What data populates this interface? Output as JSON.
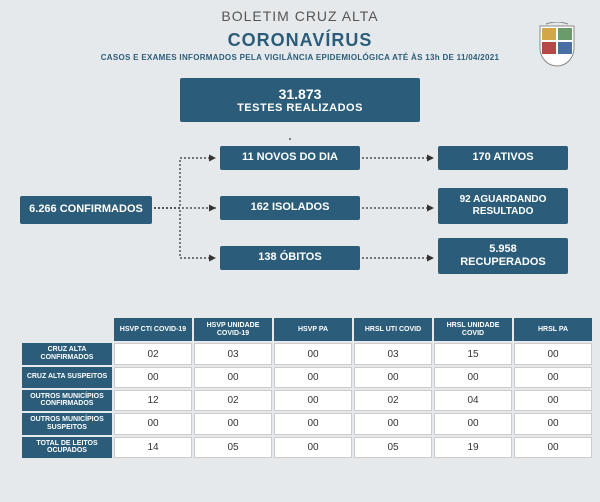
{
  "header": {
    "bulletin": "BOLETIM CRUZ ALTA",
    "title": "CORONAVÍRUS",
    "subtitle": "CASOS E EXAMES INFORMADOS PELA VIGILÂNCIA EPIDEMIOLÓGICA ATÉ ÀS 13h DE 11/04/2021"
  },
  "tests": {
    "number": "31.873",
    "label": "TESTES REALIZADOS"
  },
  "flow": {
    "confirmed": "6.266 CONFIRMADOS",
    "mid1": "11 NOVOS DO DIA",
    "mid2": "162 ISOLADOS",
    "mid3": "138 ÓBITOS",
    "right1": "170 ATIVOS",
    "right2": "92 AGUARDANDO RESULTADO",
    "right3_num": "5.958",
    "right3_label": "RECUPERADOS"
  },
  "table": {
    "columns": [
      "HSVP CTI COVID-19",
      "HSVP UNIDADE COVID-19",
      "HSVP PA",
      "HRSL UTI COVID",
      "HRSL UNIDADE COVID",
      "HRSL PA"
    ],
    "rows": [
      {
        "label": "CRUZ ALTA CONFIRMADOS",
        "cells": [
          "02",
          "03",
          "00",
          "03",
          "15",
          "00"
        ]
      },
      {
        "label": "CRUZ ALTA SUSPEITOS",
        "cells": [
          "00",
          "00",
          "00",
          "00",
          "00",
          "00"
        ]
      },
      {
        "label": "OUTROS MUNICÍPIOS CONFIRMADOS",
        "cells": [
          "12",
          "02",
          "00",
          "02",
          "04",
          "00"
        ]
      },
      {
        "label": "OUTROS MUNICÍPIOS SUSPEITOS",
        "cells": [
          "00",
          "00",
          "00",
          "00",
          "00",
          "00"
        ]
      },
      {
        "label": "TOTAL DE LEITOS OCUPADOS",
        "cells": [
          "14",
          "05",
          "00",
          "05",
          "19",
          "00"
        ]
      }
    ]
  },
  "colors": {
    "primary": "#2b5d7a",
    "bg": "#e6e9ec"
  }
}
